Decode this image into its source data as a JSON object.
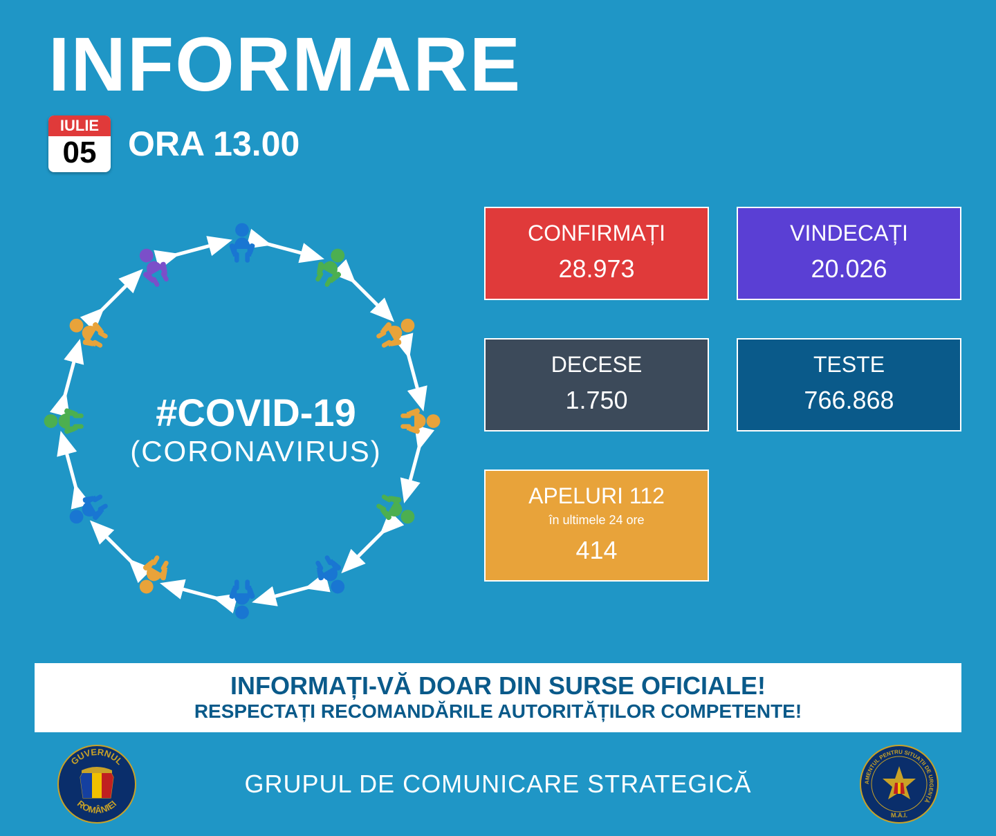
{
  "colors": {
    "background": "#1f96c6",
    "confirmed_bg": "#e03a3a",
    "recovered_bg": "#5a3fd4",
    "deaths_bg": "#3c4a5a",
    "tests_bg": "#0a5a8a",
    "calls_bg": "#e8a33a",
    "calendar_month_bg": "#e03a3a",
    "banner_text": "#0a5a8a",
    "white": "#ffffff",
    "person_orange": "#e8a33a",
    "person_green": "#4caf50",
    "person_blue": "#1976d2",
    "person_purple": "#7b4fc9",
    "seal_blue": "#0a2e6b"
  },
  "header": {
    "title": "INFORMARE",
    "month": "IULIE",
    "day": "05",
    "time": "ORA 13.00"
  },
  "circle": {
    "hashtag": "#COVID-19",
    "subtitle": "(CORONAVIRUS)"
  },
  "stats": {
    "confirmed": {
      "label": "CONFIRMAȚI",
      "value": "28.973"
    },
    "recovered": {
      "label": "VINDECAȚI",
      "value": "20.026"
    },
    "deaths": {
      "label": "DECESE",
      "value": "1.750"
    },
    "tests": {
      "label": "TESTE",
      "value": "766.868"
    },
    "calls": {
      "label": "APELURI 112",
      "sublabel": "în ultimele 24 ore",
      "value": "414"
    }
  },
  "banner": {
    "line1": "INFORMAȚI-VĂ DOAR DIN SURSE OFICIALE!",
    "line2": "RESPECTAȚI RECOMANDĂRILE AUTORITĂȚILOR COMPETENTE!"
  },
  "footer": {
    "text": "GRUPUL DE COMUNICARE STRATEGICĂ",
    "left_seal_top": "GUVERNUL",
    "left_seal_bottom": "ROMÂNIEI",
    "right_seal_text": "DEPARTAMENTUL PENTRU SITUAȚII DE URGENȚĂ"
  },
  "people_ring": {
    "count": 12,
    "colors_seq": [
      "#1976d2",
      "#4caf50",
      "#e8a33a",
      "#e8a33a",
      "#4caf50",
      "#1976d2",
      "#1976d2",
      "#e8a33a",
      "#1976d2",
      "#4caf50",
      "#e8a33a",
      "#7b4fc9"
    ]
  }
}
